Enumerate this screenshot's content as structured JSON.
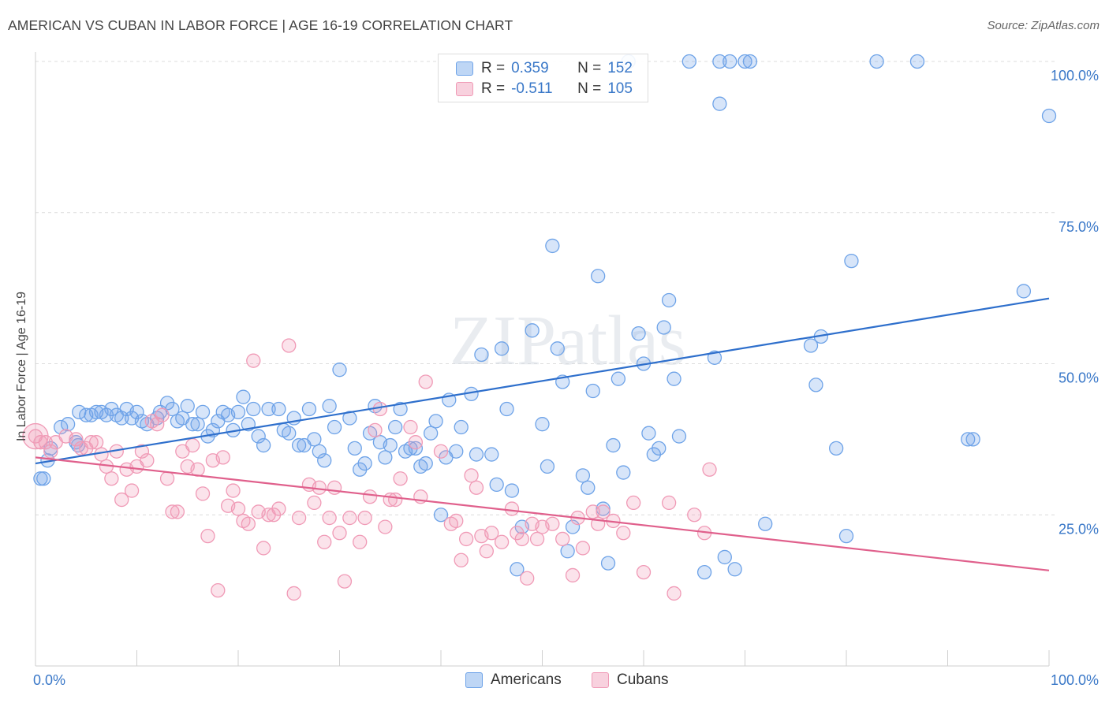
{
  "header": {
    "title": "AMERICAN VS CUBAN IN LABOR FORCE | AGE 16-19 CORRELATION CHART",
    "source": "Source: ZipAtlas.com"
  },
  "watermark": "ZIPatlas",
  "legend": {
    "rows": [
      {
        "r_label": "R =",
        "r_value": "0.359",
        "n_label": "N =",
        "n_value": "152",
        "color": "#6ea3e8"
      },
      {
        "r_label": "R =",
        "r_value": "-0.511",
        "n_label": "N =",
        "n_value": "105",
        "color": "#f09ab6"
      }
    ]
  },
  "bottom_legend": {
    "items": [
      {
        "label": "Americans",
        "color": "#6ea3e8"
      },
      {
        "label": "Cubans",
        "color": "#f09ab6"
      }
    ]
  },
  "chart_data": {
    "type": "scatter",
    "title": "AMERICAN VS CUBAN IN LABOR FORCE | AGE 16-19 CORRELATION CHART",
    "xlabel": "",
    "ylabel": "In Labor Force | Age 16-19",
    "xlim": [
      0,
      100
    ],
    "ylim": [
      0,
      100
    ],
    "x_tick_labels": [
      "0.0%",
      "100.0%"
    ],
    "y_tick_labels": [
      "25.0%",
      "50.0%",
      "75.0%",
      "100.0%"
    ],
    "y_ticks": [
      25,
      50,
      75,
      100
    ],
    "grid": true,
    "legend_position": "top-center",
    "series": [
      {
        "name": "Americans",
        "color": "#6ea3e8",
        "line_color": "#2e6fcc",
        "trend": {
          "x": [
            0,
            100
          ],
          "y": [
            33.5,
            60.8
          ]
        },
        "points": [
          [
            0.5,
            31
          ],
          [
            0.8,
            31
          ],
          [
            1.2,
            34
          ],
          [
            1.5,
            36
          ],
          [
            2.5,
            39.5
          ],
          [
            3.2,
            40
          ],
          [
            4,
            37
          ],
          [
            4.2,
            36.5
          ],
          [
            4.3,
            42
          ],
          [
            5,
            41.5
          ],
          [
            5.5,
            41.5
          ],
          [
            6,
            42
          ],
          [
            6.5,
            42
          ],
          [
            7,
            41.5
          ],
          [
            7.5,
            42.5
          ],
          [
            8,
            41.5
          ],
          [
            8.5,
            41
          ],
          [
            9,
            42.5
          ],
          [
            9.5,
            41
          ],
          [
            10,
            42
          ],
          [
            10.5,
            40.5
          ],
          [
            11,
            40
          ],
          [
            12,
            41
          ],
          [
            12.3,
            42
          ],
          [
            13,
            43.5
          ],
          [
            13.5,
            42.5
          ],
          [
            14,
            40.5
          ],
          [
            14.5,
            41
          ],
          [
            15,
            43
          ],
          [
            15.5,
            40
          ],
          [
            16,
            40
          ],
          [
            16.5,
            42
          ],
          [
            17,
            38
          ],
          [
            17.5,
            39
          ],
          [
            18,
            40.5
          ],
          [
            18.5,
            42
          ],
          [
            19,
            41.5
          ],
          [
            19.5,
            39
          ],
          [
            20,
            42
          ],
          [
            20.5,
            44.5
          ],
          [
            21,
            40
          ],
          [
            21.5,
            42.5
          ],
          [
            22,
            38
          ],
          [
            22.5,
            36.5
          ],
          [
            23,
            42.5
          ],
          [
            24,
            42.5
          ],
          [
            24.5,
            39
          ],
          [
            25,
            38.5
          ],
          [
            25.5,
            41
          ],
          [
            26,
            36.5
          ],
          [
            26.5,
            36.5
          ],
          [
            27,
            42.5
          ],
          [
            27.5,
            37.5
          ],
          [
            28,
            35.5
          ],
          [
            28.5,
            34
          ],
          [
            29,
            43
          ],
          [
            29.5,
            39.5
          ],
          [
            30,
            49
          ],
          [
            31,
            41
          ],
          [
            31.5,
            36
          ],
          [
            32,
            32.5
          ],
          [
            32.5,
            33.5
          ],
          [
            33,
            38.5
          ],
          [
            33.5,
            43
          ],
          [
            34,
            37
          ],
          [
            34.5,
            34.5
          ],
          [
            35,
            36.5
          ],
          [
            35.5,
            39.5
          ],
          [
            36,
            42.5
          ],
          [
            36.5,
            35.5
          ],
          [
            37,
            36
          ],
          [
            37.5,
            36
          ],
          [
            38,
            33
          ],
          [
            38.5,
            33.5
          ],
          [
            39,
            38.5
          ],
          [
            39.5,
            40.5
          ],
          [
            40,
            25
          ],
          [
            40.5,
            34.5
          ],
          [
            40.8,
            44
          ],
          [
            41.5,
            35.5
          ],
          [
            42,
            39.5
          ],
          [
            43,
            45
          ],
          [
            43.5,
            35
          ],
          [
            44,
            51.5
          ],
          [
            45,
            35
          ],
          [
            45.5,
            30
          ],
          [
            46,
            52.5
          ],
          [
            46.5,
            42.5
          ],
          [
            47,
            29
          ],
          [
            47.5,
            16
          ],
          [
            48,
            23
          ],
          [
            49,
            55.5
          ],
          [
            50,
            40
          ],
          [
            50.5,
            33
          ],
          [
            51,
            69.5
          ],
          [
            51.5,
            52.5
          ],
          [
            52,
            47
          ],
          [
            52.5,
            19
          ],
          [
            53,
            23
          ],
          [
            54,
            31.5
          ],
          [
            54.5,
            29.5
          ],
          [
            55,
            45.5
          ],
          [
            55.5,
            64.5
          ],
          [
            56,
            26
          ],
          [
            56.5,
            17
          ],
          [
            57,
            36.5
          ],
          [
            57.5,
            47.5
          ],
          [
            58,
            32
          ],
          [
            59.5,
            55
          ],
          [
            60,
            50
          ],
          [
            60.5,
            38.5
          ],
          [
            61,
            35
          ],
          [
            61.5,
            36
          ],
          [
            62,
            56
          ],
          [
            62.5,
            60.5
          ],
          [
            63,
            47.5
          ],
          [
            63.5,
            38
          ],
          [
            64.5,
            100
          ],
          [
            66,
            15.5
          ],
          [
            67,
            51
          ],
          [
            67.5,
            93
          ],
          [
            67.5,
            100
          ],
          [
            68,
            18
          ],
          [
            68.5,
            100
          ],
          [
            69,
            16
          ],
          [
            70,
            100
          ],
          [
            70.5,
            100
          ],
          [
            72,
            23.5
          ],
          [
            76.5,
            53
          ],
          [
            77,
            46.5
          ],
          [
            77.5,
            54.5
          ],
          [
            79,
            36
          ],
          [
            80,
            21.5
          ],
          [
            80.5,
            67
          ],
          [
            83,
            100
          ],
          [
            87,
            100
          ],
          [
            92,
            37.5
          ],
          [
            92.5,
            37.5
          ],
          [
            97.5,
            62
          ],
          [
            100,
            91
          ],
          [
            58.5,
            100
          ]
        ]
      },
      {
        "name": "Cubans",
        "color": "#f09ab6",
        "line_color": "#e0608c",
        "trend": {
          "x": [
            0,
            100
          ],
          "y": [
            34.5,
            15.8
          ]
        },
        "points": [
          [
            0,
            38
          ],
          [
            0.5,
            37
          ],
          [
            1,
            37
          ],
          [
            1.5,
            35.5
          ],
          [
            2,
            37
          ],
          [
            3,
            38
          ],
          [
            4,
            37.5
          ],
          [
            4.5,
            36
          ],
          [
            5,
            36
          ],
          [
            5.5,
            37
          ],
          [
            6,
            37
          ],
          [
            6.5,
            35
          ],
          [
            7,
            33
          ],
          [
            7.5,
            31
          ],
          [
            8,
            35.5
          ],
          [
            8.5,
            27.5
          ],
          [
            9,
            32.5
          ],
          [
            9.5,
            29
          ],
          [
            10,
            33
          ],
          [
            10.5,
            35.5
          ],
          [
            11,
            34
          ],
          [
            11.5,
            40.5
          ],
          [
            12,
            40
          ],
          [
            12.5,
            41.5
          ],
          [
            13,
            31
          ],
          [
            13.5,
            25.5
          ],
          [
            14,
            25.5
          ],
          [
            14.5,
            35.5
          ],
          [
            15,
            33
          ],
          [
            15.5,
            36.5
          ],
          [
            16,
            32.5
          ],
          [
            16.5,
            28.5
          ],
          [
            17,
            21.5
          ],
          [
            17.5,
            34
          ],
          [
            18,
            12.5
          ],
          [
            18.5,
            34.5
          ],
          [
            19,
            26.5
          ],
          [
            19.5,
            29
          ],
          [
            20,
            26
          ],
          [
            20.5,
            24
          ],
          [
            21,
            23.5
          ],
          [
            21.5,
            50.5
          ],
          [
            22,
            25.5
          ],
          [
            22.5,
            19.5
          ],
          [
            23,
            25
          ],
          [
            23.5,
            25
          ],
          [
            24,
            26
          ],
          [
            25,
            53
          ],
          [
            25.5,
            12
          ],
          [
            26,
            24.5
          ],
          [
            27,
            30
          ],
          [
            27.5,
            27
          ],
          [
            28,
            29.5
          ],
          [
            28.5,
            20.5
          ],
          [
            29,
            24.5
          ],
          [
            29.5,
            29.5
          ],
          [
            30,
            22
          ],
          [
            30.5,
            14
          ],
          [
            31,
            24.5
          ],
          [
            32,
            20.5
          ],
          [
            32.5,
            24.5
          ],
          [
            33,
            28
          ],
          [
            33.5,
            39
          ],
          [
            34,
            42.5
          ],
          [
            34.5,
            23
          ],
          [
            35,
            27.5
          ],
          [
            35.5,
            27.5
          ],
          [
            36,
            31
          ],
          [
            37,
            39.5
          ],
          [
            37.5,
            37
          ],
          [
            38,
            28
          ],
          [
            38.5,
            47
          ],
          [
            40,
            35.5
          ],
          [
            41,
            23.5
          ],
          [
            41.5,
            24
          ],
          [
            42,
            17.5
          ],
          [
            42.5,
            21
          ],
          [
            43,
            31.5
          ],
          [
            43.5,
            29.5
          ],
          [
            44,
            21.5
          ],
          [
            44.5,
            19
          ],
          [
            45,
            22
          ],
          [
            46,
            20.5
          ],
          [
            47,
            26
          ],
          [
            47.5,
            22
          ],
          [
            48,
            21
          ],
          [
            48.5,
            14.5
          ],
          [
            49,
            23.5
          ],
          [
            49.5,
            21
          ],
          [
            50,
            23
          ],
          [
            51,
            23.5
          ],
          [
            52,
            21
          ],
          [
            53,
            15
          ],
          [
            53.5,
            24.5
          ],
          [
            54,
            19.5
          ],
          [
            55,
            25.5
          ],
          [
            55.5,
            23.5
          ],
          [
            56,
            25.5
          ],
          [
            57,
            24
          ],
          [
            58,
            22
          ],
          [
            59,
            27
          ],
          [
            60,
            15.5
          ],
          [
            62.5,
            27
          ],
          [
            63,
            12
          ],
          [
            65,
            25
          ],
          [
            66,
            22
          ],
          [
            66.5,
            32.5
          ]
        ]
      }
    ]
  }
}
